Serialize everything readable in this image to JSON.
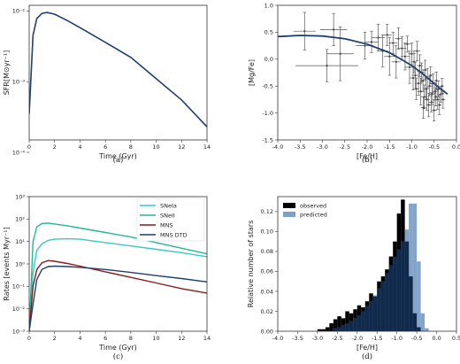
{
  "chart_data": [
    {
      "id": "a",
      "type": "line",
      "panel_label": "(a)",
      "xlabel": "Time (Gyr)",
      "ylabel": "SFR[M⊙yr⁻¹]",
      "xlim": [
        0,
        14
      ],
      "ylim": [
        0.00015,
        0.012
      ],
      "yscale": "log",
      "xticks": [
        0,
        2,
        4,
        6,
        8,
        10,
        12,
        14
      ],
      "yticks": [
        {
          "value": 0.0001,
          "label": "10⁻⁴"
        },
        {
          "value": 0.001,
          "label": "10⁻³"
        },
        {
          "value": 0.01,
          "label": "10⁻²"
        }
      ],
      "series": [
        {
          "color": "#1f3f6e",
          "x": [
            0.0,
            0.3,
            0.6,
            1.0,
            1.4,
            2.0,
            3.0,
            4.0,
            6.0,
            8.0,
            10.0,
            12.0,
            14.0
          ],
          "y": [
            0.00035,
            0.0045,
            0.0078,
            0.0092,
            0.0095,
            0.009,
            0.0073,
            0.0058,
            0.0036,
            0.0022,
            0.0011,
            0.00055,
            0.00023
          ]
        }
      ]
    },
    {
      "id": "b",
      "type": "scatter",
      "panel_label": "(b)",
      "xlabel": "[Fe/H]",
      "ylabel": "[Mg/Fe]",
      "xlim": [
        -4.0,
        0.0
      ],
      "ylim": [
        -1.5,
        1.0
      ],
      "xticks": [
        -4.0,
        -3.5,
        -3.0,
        -2.5,
        -2.0,
        -1.5,
        -1.0,
        -0.5,
        0.0
      ],
      "yticks": [
        -1.5,
        -1.0,
        -0.5,
        0.0,
        0.5,
        1.0
      ],
      "points": [
        {
          "x": -3.4,
          "y": 0.52,
          "xerr": 0.25,
          "yerr": 0.35
        },
        {
          "x": -2.75,
          "y": 0.55,
          "xerr": 0.3,
          "yerr": 0.3
        },
        {
          "x": -2.9,
          "y": -0.12,
          "xerr": 0.7,
          "yerr": 0.3
        },
        {
          "x": -2.6,
          "y": 0.1,
          "xerr": 0.3,
          "yerr": 0.5
        },
        {
          "x": -2.05,
          "y": 0.25,
          "xerr": 0.2,
          "yerr": 0.25
        },
        {
          "x": -1.9,
          "y": 0.32,
          "xerr": 0.15,
          "yerr": 0.2
        },
        {
          "x": -1.75,
          "y": 0.4,
          "xerr": 0.15,
          "yerr": 0.25
        },
        {
          "x": -1.65,
          "y": 0.15,
          "xerr": 0.12,
          "yerr": 0.3
        },
        {
          "x": -1.55,
          "y": 0.45,
          "xerr": 0.1,
          "yerr": 0.2
        },
        {
          "x": -1.5,
          "y": 0.05,
          "xerr": 0.12,
          "yerr": 0.35
        },
        {
          "x": -1.42,
          "y": 0.3,
          "xerr": 0.1,
          "yerr": 0.2
        },
        {
          "x": -1.35,
          "y": -0.05,
          "xerr": 0.1,
          "yerr": 0.3
        },
        {
          "x": -1.3,
          "y": 0.38,
          "xerr": 0.08,
          "yerr": 0.2
        },
        {
          "x": -1.22,
          "y": 0.2,
          "xerr": 0.1,
          "yerr": 0.22
        },
        {
          "x": -1.15,
          "y": 0.05,
          "xerr": 0.1,
          "yerr": 0.25
        },
        {
          "x": -1.1,
          "y": 0.28,
          "xerr": 0.08,
          "yerr": 0.15
        },
        {
          "x": -1.05,
          "y": -0.15,
          "xerr": 0.1,
          "yerr": 0.3
        },
        {
          "x": -1.0,
          "y": 0.1,
          "xerr": 0.08,
          "yerr": 0.2
        },
        {
          "x": -0.95,
          "y": -0.05,
          "xerr": 0.07,
          "yerr": 0.2
        },
        {
          "x": -0.92,
          "y": -0.3,
          "xerr": 0.08,
          "yerr": 0.25
        },
        {
          "x": -0.88,
          "y": 0.15,
          "xerr": 0.07,
          "yerr": 0.18
        },
        {
          "x": -0.85,
          "y": -0.45,
          "xerr": 0.08,
          "yerr": 0.22
        },
        {
          "x": -0.82,
          "y": -0.12,
          "xerr": 0.07,
          "yerr": 0.2
        },
        {
          "x": -0.8,
          "y": -0.6,
          "xerr": 0.08,
          "yerr": 0.25
        },
        {
          "x": -0.78,
          "y": -0.25,
          "xerr": 0.06,
          "yerr": 0.18
        },
        {
          "x": -0.75,
          "y": -0.4,
          "xerr": 0.07,
          "yerr": 0.2
        },
        {
          "x": -0.72,
          "y": -0.7,
          "xerr": 0.07,
          "yerr": 0.22
        },
        {
          "x": -0.7,
          "y": -0.2,
          "xerr": 0.06,
          "yerr": 0.18
        },
        {
          "x": -0.68,
          "y": -0.55,
          "xerr": 0.06,
          "yerr": 0.2
        },
        {
          "x": -0.65,
          "y": -0.35,
          "xerr": 0.06,
          "yerr": 0.18
        },
        {
          "x": -0.62,
          "y": -0.85,
          "xerr": 0.06,
          "yerr": 0.22
        },
        {
          "x": -0.6,
          "y": -0.5,
          "xerr": 0.06,
          "yerr": 0.18
        },
        {
          "x": -0.58,
          "y": -0.3,
          "xerr": 0.05,
          "yerr": 0.16
        },
        {
          "x": -0.55,
          "y": -0.65,
          "xerr": 0.06,
          "yerr": 0.2
        },
        {
          "x": -0.52,
          "y": -0.45,
          "xerr": 0.05,
          "yerr": 0.18
        },
        {
          "x": -0.5,
          "y": -0.95,
          "xerr": 0.06,
          "yerr": 0.2
        },
        {
          "x": -0.48,
          "y": -0.6,
          "xerr": 0.05,
          "yerr": 0.16
        },
        {
          "x": -0.45,
          "y": -0.4,
          "xerr": 0.05,
          "yerr": 0.16
        },
        {
          "x": -0.42,
          "y": -0.75,
          "xerr": 0.05,
          "yerr": 0.18
        },
        {
          "x": -0.4,
          "y": -0.55,
          "xerr": 0.05,
          "yerr": 0.15
        },
        {
          "x": -0.38,
          "y": -0.85,
          "xerr": 0.05,
          "yerr": 0.18
        },
        {
          "x": -0.35,
          "y": -0.65,
          "xerr": 0.05,
          "yerr": 0.15
        },
        {
          "x": -0.32,
          "y": -0.5,
          "xerr": 0.04,
          "yerr": 0.14
        },
        {
          "x": -0.3,
          "y": -0.75,
          "xerr": 0.05,
          "yerr": 0.16
        },
        {
          "x": -0.9,
          "y": -0.55,
          "xerr": 0.07,
          "yerr": 0.2
        },
        {
          "x": -0.97,
          "y": -0.35,
          "xerr": 0.07,
          "yerr": 0.22
        },
        {
          "x": -0.66,
          "y": -0.75,
          "xerr": 0.06,
          "yerr": 0.2
        },
        {
          "x": -0.56,
          "y": -0.8,
          "xerr": 0.05,
          "yerr": 0.18
        },
        {
          "x": -0.46,
          "y": -0.7,
          "xerr": 0.05,
          "yerr": 0.17
        },
        {
          "x": -0.74,
          "y": -0.9,
          "xerr": 0.06,
          "yerr": 0.2
        }
      ],
      "model_curve": {
        "color": "#1f3f6e",
        "x": [
          -4.0,
          -3.5,
          -3.0,
          -2.5,
          -2.0,
          -1.5,
          -1.2,
          -1.0,
          -0.8,
          -0.6,
          -0.4,
          -0.2
        ],
        "y": [
          0.42,
          0.44,
          0.43,
          0.38,
          0.28,
          0.12,
          -0.02,
          -0.12,
          -0.24,
          -0.38,
          -0.52,
          -0.65
        ]
      }
    },
    {
      "id": "c",
      "type": "line",
      "panel_label": "(c)",
      "xlabel": "Time (Gyr)",
      "ylabel": "Rates [events Myr⁻¹]",
      "xlim": [
        0,
        14
      ],
      "ylim": [
        -3,
        3
      ],
      "yscale": "log",
      "xticks": [
        0,
        2,
        4,
        6,
        8,
        10,
        12,
        14
      ],
      "yticks": [
        {
          "value": -3,
          "label": "10⁻³"
        },
        {
          "value": -2,
          "label": "10⁻²"
        },
        {
          "value": -1,
          "label": "10⁻¹"
        },
        {
          "value": 0,
          "label": "10⁰"
        },
        {
          "value": 1,
          "label": "10¹"
        },
        {
          "value": 2,
          "label": "10²"
        },
        {
          "value": 3,
          "label": "10³"
        }
      ],
      "legend_position": "top-right",
      "x": [
        0.0,
        0.3,
        0.6,
        1.0,
        1.5,
        2.0,
        3.0,
        4.0,
        6.0,
        8.0,
        10.0,
        12.0,
        14.0
      ],
      "series": [
        {
          "name": "SNeIa",
          "color": "#3cc8c0",
          "y_log10": [
            -3.0,
            -0.4,
            0.6,
            0.9,
            1.05,
            1.1,
            1.12,
            1.1,
            0.95,
            0.8,
            0.65,
            0.5,
            0.32
          ]
        },
        {
          "name": "SNeII",
          "color": "#22b893",
          "y_log10": [
            -3.0,
            1.0,
            1.65,
            1.8,
            1.82,
            1.78,
            1.7,
            1.6,
            1.4,
            1.2,
            0.95,
            0.7,
            0.45
          ]
        },
        {
          "name": "MNS",
          "color": "#8b1a1a",
          "y_log10": [
            -3.0,
            -1.0,
            -0.25,
            0.05,
            0.15,
            0.12,
            0.02,
            -0.1,
            -0.35,
            -0.6,
            -0.85,
            -1.1,
            -1.3
          ]
        },
        {
          "name": "MNS DTD",
          "color": "#1f3f6e",
          "y_log10": [
            -3.0,
            -1.8,
            -0.7,
            -0.25,
            -0.12,
            -0.1,
            -0.12,
            -0.15,
            -0.25,
            -0.38,
            -0.52,
            -0.65,
            -0.8
          ]
        }
      ]
    },
    {
      "id": "d",
      "type": "bar",
      "panel_label": "(d)",
      "xlabel": "[Fe/H]",
      "ylabel": "Relative number of stars",
      "xlim": [
        -4.0,
        0.5
      ],
      "ylim": [
        0,
        0.135
      ],
      "xticks": [
        -4.0,
        -3.5,
        -3.0,
        -2.5,
        -2.0,
        -1.5,
        -1.0,
        -0.5,
        0.0,
        0.5
      ],
      "yticks": [
        0.0,
        0.02,
        0.04,
        0.06,
        0.08,
        0.1,
        0.12
      ],
      "legend_position": "top-left",
      "bin_width": 0.1,
      "series": [
        {
          "name": "observed",
          "color": "#000000",
          "bins_start": [
            -3.0,
            -2.9,
            -2.8,
            -2.7,
            -2.6,
            -2.5,
            -2.4,
            -2.3,
            -2.2,
            -2.1,
            -2.0,
            -1.9,
            -1.8,
            -1.7,
            -1.6,
            -1.5,
            -1.4,
            -1.3,
            -1.2,
            -1.1,
            -1.0,
            -0.9,
            -0.8,
            -0.7,
            -0.6,
            -0.5
          ],
          "values": [
            0.002,
            0.002,
            0.004,
            0.008,
            0.012,
            0.015,
            0.013,
            0.02,
            0.018,
            0.022,
            0.026,
            0.024,
            0.03,
            0.038,
            0.035,
            0.05,
            0.055,
            0.062,
            0.075,
            0.09,
            0.118,
            0.132,
            0.09,
            0.055,
            0.018,
            0.004
          ]
        },
        {
          "name": "predicted",
          "color": "#7d9fc9",
          "bins_start": [
            -2.6,
            -2.5,
            -2.4,
            -2.3,
            -2.2,
            -2.1,
            -2.0,
            -1.9,
            -1.8,
            -1.7,
            -1.6,
            -1.5,
            -1.4,
            -1.3,
            -1.2,
            -1.1,
            -1.0,
            -0.9,
            -0.8,
            -0.7,
            -0.6,
            -0.5,
            -0.4,
            -0.3
          ],
          "values": [
            0.003,
            0.004,
            0.006,
            0.008,
            0.01,
            0.013,
            0.016,
            0.02,
            0.025,
            0.03,
            0.036,
            0.043,
            0.05,
            0.058,
            0.066,
            0.074,
            0.082,
            0.09,
            0.102,
            0.128,
            0.128,
            0.07,
            0.018,
            0.003
          ]
        }
      ]
    }
  ]
}
